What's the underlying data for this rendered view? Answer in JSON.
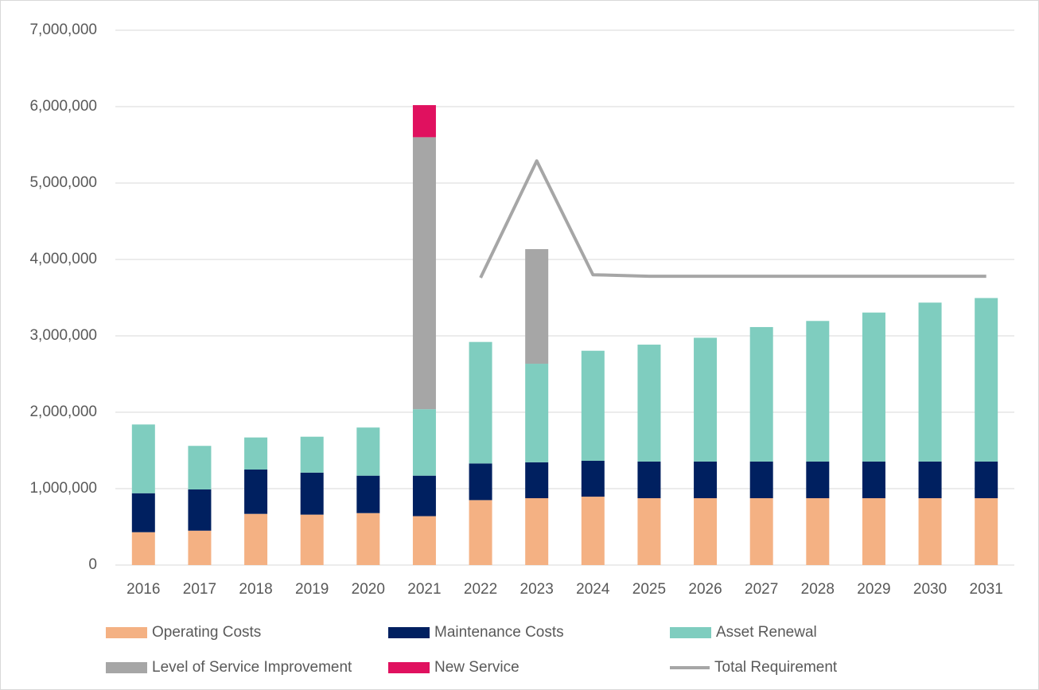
{
  "chart_data": {
    "type": "bar",
    "categories": [
      "2016",
      "2017",
      "2018",
      "2019",
      "2020",
      "2021",
      "2022",
      "2023",
      "2024",
      "2025",
      "2026",
      "2027",
      "2028",
      "2029",
      "2030",
      "2031"
    ],
    "series": [
      {
        "name": "Operating Costs",
        "color": "#f4b183",
        "values": [
          430000,
          450000,
          670000,
          660000,
          680000,
          640000,
          850000,
          875000,
          895000,
          875000,
          875000,
          875000,
          875000,
          875000,
          875000,
          875000
        ]
      },
      {
        "name": "Maintenance Costs",
        "color": "#002060",
        "values": [
          510000,
          540000,
          580000,
          550000,
          490000,
          530000,
          480000,
          470000,
          470000,
          480000,
          480000,
          480000,
          480000,
          480000,
          480000,
          480000
        ]
      },
      {
        "name": "Asset Renewal",
        "color": "#7fcdbf",
        "values": [
          900000,
          570000,
          420000,
          470000,
          630000,
          870000,
          1590000,
          1290000,
          1440000,
          1530000,
          1620000,
          1760000,
          1840000,
          1950000,
          2080000,
          2140000
        ]
      },
      {
        "name": "Level of Service Improvement",
        "color": "#a6a6a6",
        "values": [
          null,
          null,
          null,
          null,
          null,
          3560000,
          null,
          1500000,
          null,
          null,
          null,
          null,
          null,
          null,
          null,
          null
        ]
      },
      {
        "name": "New Service",
        "color": "#e0115f",
        "values": [
          null,
          null,
          null,
          null,
          null,
          420000,
          null,
          null,
          null,
          null,
          null,
          null,
          null,
          null,
          null,
          null
        ]
      },
      {
        "name": "Total Requirement",
        "type": "line",
        "color": "#a6a6a6",
        "values": [
          null,
          null,
          null,
          null,
          null,
          null,
          3760000,
          5290000,
          3800000,
          3780000,
          3780000,
          3780000,
          3780000,
          3780000,
          3780000,
          3780000
        ]
      }
    ],
    "ylim": [
      0,
      7000000
    ],
    "yticks": [
      0,
      {
        "value": 1000000,
        "label": "1,000,000"
      },
      {
        "value": 2000000,
        "label": "2,000,000"
      },
      {
        "value": 3000000,
        "label": "3,000,000"
      },
      {
        "value": 4000000,
        "label": "4,000,000"
      },
      {
        "value": 5000000,
        "label": "5,000,000"
      },
      {
        "value": 6000000,
        "label": "6,000,000"
      },
      {
        "value": 7000000,
        "label": "7,000,000"
      }
    ],
    "grid": true
  }
}
